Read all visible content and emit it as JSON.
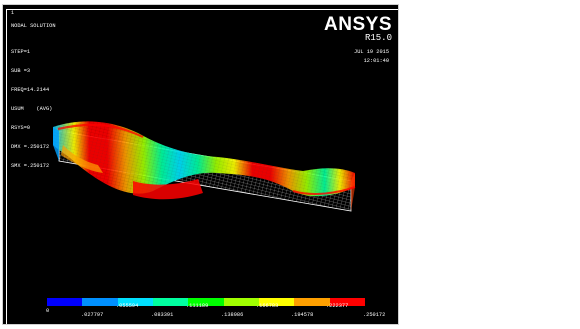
{
  "window": {
    "number": "1",
    "title": "NODAL SOLUTION",
    "info_lines": [
      "STEP=1",
      "SUB =3",
      "FREQ=14.2144",
      "USUM    (AVG)",
      "RSYS=0",
      "DMX =.250172",
      "SMX =.250172"
    ],
    "brand": "ANSYS",
    "version": "R15.0",
    "date": "JUL 19 2015",
    "time": "12:01:40"
  },
  "legend": {
    "colors": [
      "#0000ff",
      "#0090ff",
      "#00e0ff",
      "#00ffa0",
      "#00ff00",
      "#a0ff00",
      "#ffff00",
      "#ffa000",
      "#ff0000"
    ],
    "top_labels": [
      "0",
      ".055594",
      ".111189",
      ".166783",
      ".222377"
    ],
    "bottom_labels": [
      ".027797",
      ".083391",
      ".138986",
      ".194578",
      ".250172"
    ]
  }
}
